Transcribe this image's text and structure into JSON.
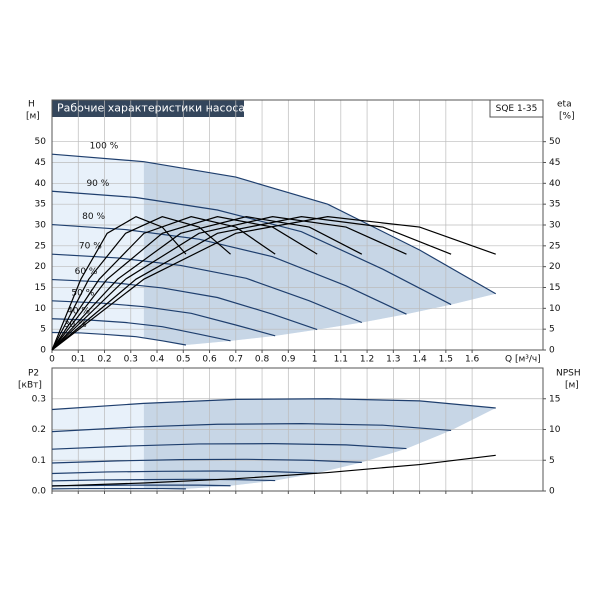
{
  "header": {
    "title": "Рабочие характеристики насоса",
    "model": "SQE 1-35"
  },
  "chart_data": [
    {
      "type": "line",
      "ylabel": "H",
      "yunit": "[м]",
      "y2label": "eta",
      "y2unit": "[%]",
      "xlabel": "Q [м³/ч]",
      "xlim": [
        0,
        1.87
      ],
      "xticks": [
        0,
        0.1,
        0.2,
        0.3,
        0.4,
        0.5,
        0.6,
        0.7,
        0.8,
        0.9,
        1.0,
        1.1,
        1.2,
        1.3,
        1.4,
        1.5,
        1.6
      ],
      "ylim": [
        0,
        60
      ],
      "yticks": [
        0,
        5,
        10,
        15,
        20,
        25,
        30,
        35,
        40,
        45,
        50
      ],
      "y2lim": [
        0,
        60
      ],
      "y2ticks": [
        0,
        5,
        10,
        15,
        20,
        25,
        30,
        35,
        40,
        45,
        50
      ],
      "grid": true,
      "series": [
        {
          "name": "100 %",
          "color": "#1f3f6e",
          "x": [
            0,
            0.35,
            0.7,
            1.05,
            1.4,
            1.69
          ],
          "values": [
            47,
            45.2,
            41.5,
            35,
            24,
            13.5
          ]
        },
        {
          "name": "90 %",
          "color": "#1f3f6e",
          "x": [
            0,
            0.32,
            0.63,
            0.95,
            1.26,
            1.52
          ],
          "values": [
            38.1,
            36.6,
            33.6,
            28.4,
            19.4,
            10.9
          ]
        },
        {
          "name": "80 %",
          "color": "#1f3f6e",
          "x": [
            0,
            0.28,
            0.56,
            0.84,
            1.12,
            1.35
          ],
          "values": [
            30.1,
            28.9,
            26.6,
            22.4,
            15.4,
            8.6
          ]
        },
        {
          "name": "70 %",
          "color": "#1f3f6e",
          "x": [
            0,
            0.25,
            0.49,
            0.74,
            0.98,
            1.18
          ],
          "values": [
            23,
            22.1,
            20.3,
            17.2,
            11.8,
            6.6
          ]
        },
        {
          "name": "60 %",
          "color": "#1f3f6e",
          "x": [
            0,
            0.21,
            0.42,
            0.63,
            0.84,
            1.01
          ],
          "values": [
            16.9,
            16.3,
            14.9,
            12.6,
            8.6,
            4.9
          ]
        },
        {
          "name": "50 %",
          "color": "#1f3f6e",
          "x": [
            0,
            0.18,
            0.35,
            0.53,
            0.7,
            0.85
          ],
          "values": [
            11.8,
            11.3,
            10.4,
            8.8,
            6,
            3.4
          ]
        },
        {
          "name": "40 %",
          "color": "#1f3f6e",
          "x": [
            0,
            0.14,
            0.28,
            0.42,
            0.56,
            0.68
          ],
          "values": [
            7.5,
            7.2,
            6.6,
            5.6,
            3.8,
            2.2
          ]
        },
        {
          "name": "30 %",
          "color": "#1f3f6e",
          "x": [
            0,
            0.11,
            0.21,
            0.32,
            0.42,
            0.51
          ],
          "values": [
            4.2,
            4.1,
            3.7,
            3.2,
            2.2,
            1.2
          ]
        },
        {
          "axis": "y2",
          "color": "#000000",
          "x": [
            0,
            0.35,
            0.7,
            1.05,
            1.4,
            1.69
          ],
          "values": [
            0,
            17,
            28,
            32,
            29.5,
            23
          ]
        },
        {
          "axis": "y2",
          "color": "#000000",
          "x": [
            0,
            0.32,
            0.63,
            0.95,
            1.26,
            1.52
          ],
          "values": [
            0,
            17,
            28,
            32,
            29.5,
            23
          ]
        },
        {
          "axis": "y2",
          "color": "#000000",
          "x": [
            0,
            0.28,
            0.56,
            0.84,
            1.12,
            1.35
          ],
          "values": [
            0,
            17,
            28,
            32,
            29.5,
            23
          ]
        },
        {
          "axis": "y2",
          "color": "#000000",
          "x": [
            0,
            0.25,
            0.49,
            0.74,
            0.98,
            1.18
          ],
          "values": [
            0,
            17,
            28,
            32,
            29.5,
            23
          ]
        },
        {
          "axis": "y2",
          "color": "#000000",
          "x": [
            0,
            0.21,
            0.42,
            0.63,
            0.84,
            1.01
          ],
          "values": [
            0,
            17,
            28,
            32,
            29.5,
            23
          ]
        },
        {
          "axis": "y2",
          "color": "#000000",
          "x": [
            0,
            0.18,
            0.35,
            0.53,
            0.7,
            0.85
          ],
          "values": [
            0,
            17,
            28,
            32,
            29.5,
            23
          ]
        },
        {
          "axis": "y2",
          "color": "#000000",
          "x": [
            0,
            0.14,
            0.28,
            0.42,
            0.56,
            0.68
          ],
          "values": [
            0,
            17,
            28,
            32,
            29.5,
            23
          ]
        },
        {
          "axis": "y2",
          "color": "#000000",
          "x": [
            0,
            0.11,
            0.21,
            0.32,
            0.42,
            0.51
          ],
          "values": [
            0,
            17,
            28,
            32,
            29.5,
            23
          ]
        }
      ]
    },
    {
      "type": "line",
      "ylabel": "P2",
      "yunit": "[кВт]",
      "y2label": "NPSH",
      "y2unit": "[м]",
      "xlim": [
        0,
        1.87
      ],
      "xticks": [
        0,
        0.1,
        0.2,
        0.3,
        0.4,
        0.5,
        0.6,
        0.7,
        0.8,
        0.9,
        1.0,
        1.1,
        1.2,
        1.3,
        1.4,
        1.5,
        1.6
      ],
      "ylim": [
        0,
        0.4
      ],
      "yticks": [
        {
          "value": 0,
          "label": "0.0"
        },
        0.1,
        0.2,
        0.3
      ],
      "y2lim": [
        0,
        20
      ],
      "y2ticks": [
        0,
        5,
        10,
        15
      ],
      "grid": true,
      "series": [
        {
          "color": "#1f3f6e",
          "x": [
            0,
            0.35,
            0.7,
            1.05,
            1.4,
            1.69
          ],
          "values": [
            0.265,
            0.285,
            0.298,
            0.3,
            0.293,
            0.27
          ]
        },
        {
          "color": "#1f3f6e",
          "x": [
            0,
            0.32,
            0.63,
            0.95,
            1.26,
            1.52
          ],
          "values": [
            0.193,
            0.208,
            0.217,
            0.219,
            0.214,
            0.197
          ]
        },
        {
          "color": "#1f3f6e",
          "x": [
            0,
            0.28,
            0.56,
            0.84,
            1.12,
            1.35
          ],
          "values": [
            0.136,
            0.146,
            0.153,
            0.154,
            0.15,
            0.138
          ]
        },
        {
          "color": "#1f3f6e",
          "x": [
            0,
            0.25,
            0.49,
            0.74,
            0.98,
            1.18
          ],
          "values": [
            0.091,
            0.098,
            0.102,
            0.103,
            0.1,
            0.093
          ]
        },
        {
          "color": "#1f3f6e",
          "x": [
            0,
            0.21,
            0.42,
            0.63,
            0.84,
            1.01
          ],
          "values": [
            0.057,
            0.062,
            0.064,
            0.065,
            0.063,
            0.058
          ]
        },
        {
          "color": "#1f3f6e",
          "x": [
            0,
            0.18,
            0.35,
            0.53,
            0.7,
            0.85
          ],
          "values": [
            0.033,
            0.036,
            0.037,
            0.038,
            0.037,
            0.034
          ]
        },
        {
          "color": "#1f3f6e",
          "x": [
            0,
            0.14,
            0.28,
            0.42,
            0.56,
            0.68
          ],
          "values": [
            0.017,
            0.018,
            0.019,
            0.019,
            0.019,
            0.017
          ]
        },
        {
          "color": "#1f3f6e",
          "x": [
            0,
            0.11,
            0.21,
            0.32,
            0.42,
            0.51
          ],
          "values": [
            0.007,
            0.008,
            0.008,
            0.008,
            0.008,
            0.007
          ]
        },
        {
          "axis": "y2",
          "color": "#000000",
          "x": [
            0,
            0.35,
            0.7,
            1.05,
            1.4,
            1.69
          ],
          "values": [
            0.8,
            1.3,
            2,
            3,
            4.3,
            5.8
          ]
        }
      ]
    }
  ]
}
